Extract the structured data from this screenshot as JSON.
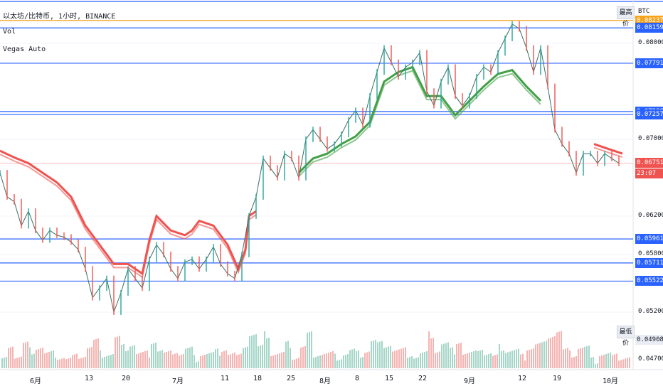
{
  "legend": {
    "symbol_line": "以太坊/比特币, 1小时, BINANCE",
    "indicator1": "Vol",
    "indicator2": "Vegas Auto"
  },
  "price_axis": {
    "currency": "BTC",
    "labels": [
      "0.080000",
      "0.070000",
      "0.062000",
      "0.058000",
      "0.052000",
      "0.047000"
    ],
    "chips": {
      "high": "最高价",
      "low": "最低价"
    },
    "tags": [
      {
        "value": "0.082371",
        "color": "#f7a21b"
      },
      {
        "value": "0.081592",
        "color": "#2962ff"
      },
      {
        "value": "0.077917",
        "color": "#2962ff"
      },
      {
        "value": "0.072883",
        "color": "#2962ff"
      },
      {
        "value": "0.072577",
        "color": "#2962ff"
      },
      {
        "value": "0.067512",
        "color": "#ef5350"
      },
      {
        "value": "23:07",
        "color": "#ef5350"
      },
      {
        "value": "0.059616",
        "color": "#2962ff"
      },
      {
        "value": "0.057115",
        "color": "#2962ff"
      },
      {
        "value": "0.055221",
        "color": "#2962ff"
      },
      {
        "value": "0.049081",
        "color": "#e9ecf2"
      }
    ]
  },
  "time_axis": {
    "labels": [
      "6月",
      "13",
      "20",
      "7月",
      "11",
      "18",
      "25",
      "8月",
      "8",
      "15",
      "22",
      "9月",
      "12",
      "19",
      "10月"
    ]
  },
  "chart_data": {
    "type": "line",
    "title": "以太坊/比特币, 1小时, BINANCE",
    "ylim": [
      0.046,
      0.0845
    ],
    "last_price": 0.067512,
    "horizontal_levels": [
      0.082371,
      0.081592,
      0.077917,
      0.072883,
      0.072577,
      0.059616,
      0.057115,
      0.055221
    ],
    "series": [
      {
        "type": "candles",
        "x": [
          0,
          10,
          20,
          30,
          40,
          50,
          60,
          70,
          80,
          90,
          100,
          110,
          120,
          130,
          140,
          150,
          160,
          170,
          180,
          190,
          200,
          210,
          220,
          230,
          240,
          250,
          260,
          270,
          280,
          290,
          300,
          310,
          320,
          330,
          340,
          350,
          360,
          370,
          380,
          390,
          400,
          410,
          420,
          430,
          440,
          450,
          460,
          470,
          480,
          490,
          500,
          510,
          520,
          530,
          540,
          550,
          560,
          570,
          580,
          590,
          600,
          610,
          620,
          630,
          640,
          650,
          660,
          670,
          680,
          690,
          700,
          710,
          720,
          730,
          740,
          750,
          760,
          770,
          780,
          790,
          800,
          810,
          820,
          830,
          840,
          850,
          860,
          870
        ],
        "values": [
          0.0665,
          0.064,
          0.0635,
          0.061,
          0.0625,
          0.0605,
          0.0595,
          0.0605,
          0.06,
          0.0598,
          0.0593,
          0.0585,
          0.0565,
          0.0535,
          0.0545,
          0.0555,
          0.052,
          0.054,
          0.0565,
          0.0555,
          0.0545,
          0.0575,
          0.059,
          0.058,
          0.0565,
          0.0555,
          0.0572,
          0.0575,
          0.0565,
          0.0575,
          0.0588,
          0.057,
          0.056,
          0.0555,
          0.058,
          0.062,
          0.064,
          0.068,
          0.067,
          0.066,
          0.0685,
          0.068,
          0.066,
          0.07,
          0.071,
          0.07,
          0.069,
          0.0695,
          0.0705,
          0.072,
          0.073,
          0.0715,
          0.0745,
          0.077,
          0.0795,
          0.078,
          0.0765,
          0.0775,
          0.078,
          0.079,
          0.075,
          0.0735,
          0.076,
          0.0775,
          0.0745,
          0.0735,
          0.0745,
          0.0765,
          0.0775,
          0.077,
          0.079,
          0.0805,
          0.082,
          0.0815,
          0.0795,
          0.077,
          0.0795,
          0.0755,
          0.071,
          0.0695,
          0.0685,
          0.0665,
          0.0685,
          0.0685,
          0.0675,
          0.0685,
          0.068,
          0.0675
        ]
      },
      {
        "type": "vegas",
        "x": [
          0,
          20,
          40,
          60,
          80,
          100,
          120,
          140,
          160,
          180,
          200,
          210,
          220,
          240,
          260,
          270,
          280,
          300,
          320,
          335,
          345,
          350,
          360
        ],
        "values": [
          0.0688,
          0.0681,
          0.0675,
          0.0665,
          0.0655,
          0.064,
          0.061,
          0.059,
          0.057,
          0.057,
          0.056,
          0.0595,
          0.062,
          0.0605,
          0.06,
          0.0605,
          0.0615,
          0.061,
          0.059,
          0.0565,
          0.0585,
          0.062,
          0.0625
        ]
      },
      {
        "type": "vegas",
        "x": [
          420,
          440,
          460,
          480,
          500,
          520,
          540,
          560,
          580,
          600,
          620,
          640,
          660,
          680,
          700,
          720,
          740,
          760
        ],
        "values": [
          0.0665,
          0.068,
          0.0685,
          0.0695,
          0.0703,
          0.0718,
          0.076,
          0.077,
          0.0775,
          0.0745,
          0.0745,
          0.0725,
          0.074,
          0.0755,
          0.0768,
          0.0772,
          0.0755,
          0.074
        ]
      },
      {
        "type": "vegas",
        "x": [
          835,
          855,
          875
        ],
        "values": [
          0.0695,
          0.069,
          0.0685
        ]
      }
    ]
  }
}
